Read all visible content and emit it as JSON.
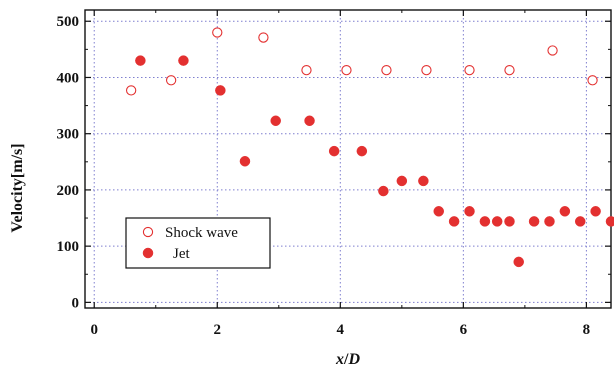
{
  "chart_data": {
    "type": "scatter",
    "xlabel": "x/D",
    "ylabel": "Velocity[m/s]",
    "xlim": [
      -0.15,
      8.4
    ],
    "ylim": [
      -10,
      520
    ],
    "xticks": [
      0,
      2,
      4,
      6,
      8
    ],
    "yticks": [
      0,
      100,
      200,
      300,
      400,
      500
    ],
    "grid": true,
    "legend_position": "lower-left",
    "series": [
      {
        "name": "Shock wave",
        "marker": "open-circle",
        "color": "#e33030",
        "points": [
          [
            0.6,
            377
          ],
          [
            1.25,
            395
          ],
          [
            2.0,
            480
          ],
          [
            2.75,
            471
          ],
          [
            3.45,
            413
          ],
          [
            4.1,
            413
          ],
          [
            4.75,
            413
          ],
          [
            5.4,
            413
          ],
          [
            6.1,
            413
          ],
          [
            6.75,
            413
          ],
          [
            7.45,
            448
          ],
          [
            8.1,
            395
          ]
        ]
      },
      {
        "name": "Jet",
        "marker": "filled-circle",
        "color": "#e33030",
        "points": [
          [
            0.75,
            430
          ],
          [
            1.45,
            430
          ],
          [
            2.05,
            377
          ],
          [
            2.45,
            251
          ],
          [
            2.95,
            323
          ],
          [
            3.5,
            323
          ],
          [
            3.9,
            269
          ],
          [
            4.35,
            269
          ],
          [
            4.7,
            198
          ],
          [
            5.0,
            216
          ],
          [
            5.35,
            216
          ],
          [
            5.6,
            162
          ],
          [
            5.85,
            144
          ],
          [
            6.1,
            162
          ],
          [
            6.35,
            144
          ],
          [
            6.55,
            144
          ],
          [
            6.75,
            144
          ],
          [
            6.9,
            72
          ],
          [
            7.15,
            144
          ],
          [
            7.4,
            144
          ],
          [
            7.65,
            162
          ],
          [
            7.9,
            144
          ],
          [
            8.15,
            162
          ],
          [
            8.4,
            144
          ]
        ]
      }
    ]
  }
}
